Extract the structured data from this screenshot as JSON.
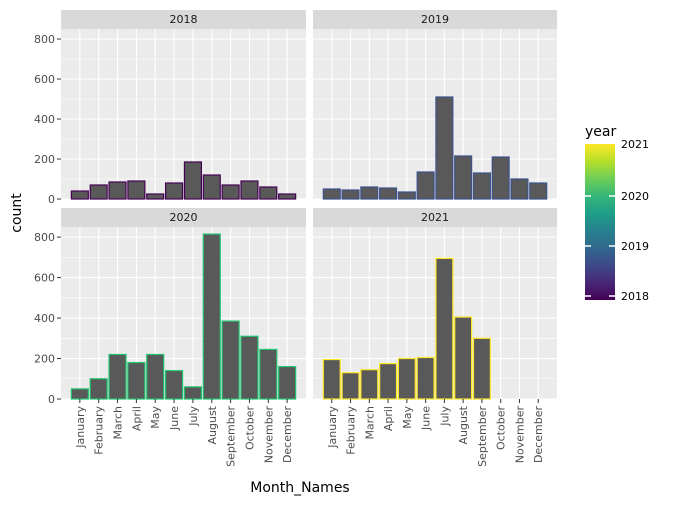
{
  "chart_data": {
    "type": "bar",
    "xlabel": "Month_Names",
    "ylabel": "count",
    "ylim": [
      0,
      850
    ],
    "yticks": [
      0,
      200,
      400,
      600,
      800
    ],
    "grid": true,
    "legend_position": "right",
    "categories": [
      "January",
      "February",
      "March",
      "April",
      "May",
      "June",
      "July",
      "August",
      "September",
      "October",
      "November",
      "December"
    ],
    "legend": {
      "title": "year",
      "type": "colorbar",
      "labels": [
        "2021",
        "2020",
        "2019",
        "2018"
      ],
      "colormap": "viridis"
    },
    "colors": {
      "2018": "#440154",
      "2019": "#3b528b",
      "2020": "#21c36f",
      "2021": "#fde725"
    },
    "series": [
      {
        "name": "2018",
        "values": [
          40,
          70,
          85,
          90,
          25,
          80,
          185,
          120,
          70,
          90,
          60,
          25
        ]
      },
      {
        "name": "2019",
        "values": [
          50,
          45,
          60,
          55,
          35,
          135,
          510,
          215,
          130,
          210,
          100,
          80
        ]
      },
      {
        "name": "2020",
        "values": [
          50,
          100,
          220,
          180,
          220,
          140,
          60,
          815,
          385,
          310,
          245,
          160
        ]
      },
      {
        "name": "2021",
        "values": [
          195,
          130,
          145,
          175,
          200,
          205,
          695,
          405,
          300,
          null,
          null,
          null
        ]
      }
    ]
  }
}
